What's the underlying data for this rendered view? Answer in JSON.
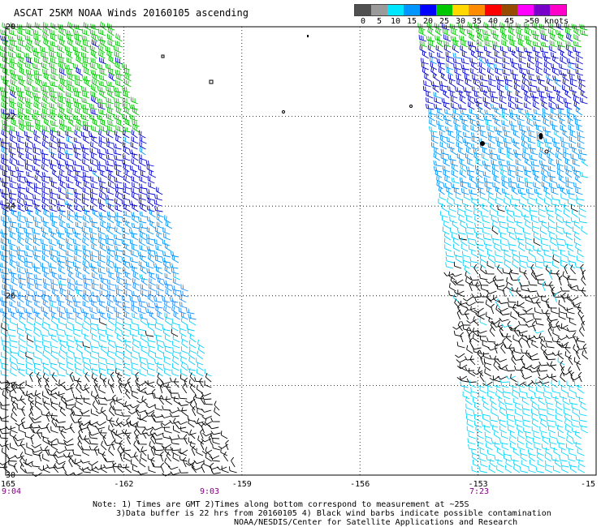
{
  "title": "ASCAT 25KM NOAA Winds 20160105 ascending",
  "legend": {
    "unit": "knots",
    "labels": [
      "0",
      "5",
      "10",
      "15",
      "20",
      "25",
      "30",
      "35",
      "40",
      "45",
      ">50 knots"
    ],
    "colors": [
      "#505050",
      "#9a9a9a",
      "#00e6ff",
      "#0096ff",
      "#0000ff",
      "#00c800",
      "#ffd800",
      "#ff8c00",
      "#ff0000",
      "#964b00",
      "#ff00ff",
      "#7800c8",
      "#ff00c8"
    ]
  },
  "map": {
    "lon_range": [
      -165,
      -150
    ],
    "lat_range": [
      30,
      20
    ],
    "lon_labels": [
      "-165",
      "-162",
      "-159",
      "-156",
      "-153",
      "-15"
    ],
    "lat_labels": [
      "20",
      "22",
      "24",
      "26",
      "28",
      "30"
    ],
    "times": [
      "9:04",
      "9:03",
      "7:23"
    ]
  },
  "wind_swaths": [
    {
      "name": "west-swath",
      "zones": [
        {
          "lat_from": 20.0,
          "lat_to": 22.4,
          "color": "#00c800",
          "speed_kt": 20
        },
        {
          "lat_from": 22.4,
          "lat_to": 24.2,
          "color": "#0000d0",
          "speed_kt": 15
        },
        {
          "lat_from": 24.2,
          "lat_to": 25.6,
          "color": "#0096ff",
          "speed_kt": 12
        },
        {
          "lat_from": 25.6,
          "lat_to": 26.6,
          "color": "#1e90ff",
          "speed_kt": 12
        },
        {
          "lat_from": 26.6,
          "lat_to": 27.8,
          "color": "#00d0ff",
          "speed_kt": 8
        },
        {
          "lat_from": 27.8,
          "lat_to": 30.0,
          "color": "#000000",
          "speed_kt": 5
        }
      ]
    },
    {
      "name": "east-swath",
      "zones": [
        {
          "lat_from": 20.0,
          "lat_to": 20.5,
          "color": "#00c800",
          "speed_kt": 20
        },
        {
          "lat_from": 20.5,
          "lat_to": 21.9,
          "color": "#0000d0",
          "speed_kt": 15
        },
        {
          "lat_from": 21.9,
          "lat_to": 23.8,
          "color": "#0096ff",
          "speed_kt": 12
        },
        {
          "lat_from": 23.8,
          "lat_to": 25.4,
          "color": "#00d0ff",
          "speed_kt": 10
        },
        {
          "lat_from": 25.4,
          "lat_to": 28.0,
          "color": "#000000",
          "speed_kt": 5
        },
        {
          "lat_from": 28.0,
          "lat_to": 30.0,
          "color": "#00d8ff",
          "speed_kt": 8
        }
      ]
    }
  ],
  "notes": [
    "Note: 1) Times are GMT 2)Times along bottom correspond to measurement at ~25S",
    "3)Data buffer is 22 hrs from 20160105 4) Black wind barbs indicate possible contamination",
    "NOAA/NESDIS/Center for Satellite Applications and Research"
  ]
}
